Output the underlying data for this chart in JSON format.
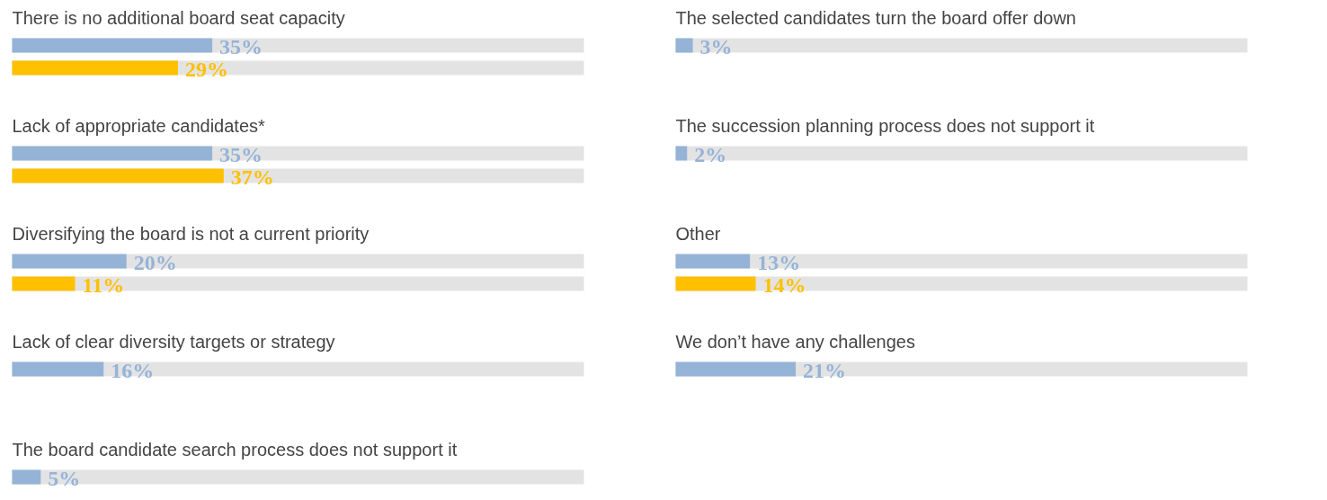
{
  "chart_data": [
    {
      "type": "bar",
      "orientation": "horizontal",
      "categories": [
        "There is no additional board seat capacity",
        "Lack of appropriate candidates*",
        "Diversifying the board is not a current priority",
        "Lack of clear diversity targets or strategy",
        "The board candidate search process does not support it"
      ],
      "series": [
        {
          "color": "#95b3d7",
          "values": [
            35,
            35,
            20,
            16,
            5
          ],
          "value_labels": [
            "35%",
            "35%",
            "20%",
            "16%",
            "5%"
          ]
        },
        {
          "color": "#ffc000",
          "values": [
            29,
            37,
            11,
            null,
            null
          ],
          "value_labels": [
            "29%",
            "37%",
            "11%",
            null,
            null
          ]
        }
      ],
      "xlim": [
        0,
        100
      ],
      "tick_labels": false,
      "grid": false
    },
    {
      "type": "bar",
      "orientation": "horizontal",
      "categories": [
        "The selected candidates turn the board offer down",
        "The succession planning process does not support it",
        "Other",
        "We don’t have any challenges"
      ],
      "series": [
        {
          "color": "#95b3d7",
          "values": [
            3,
            2,
            13,
            21
          ],
          "value_labels": [
            "3%",
            "2%",
            "13%",
            "21%"
          ]
        },
        {
          "color": "#ffc000",
          "values": [
            null,
            null,
            14,
            null
          ],
          "value_labels": [
            null,
            null,
            "14%",
            null
          ]
        }
      ],
      "xlim": [
        0,
        100
      ],
      "tick_labels": false,
      "grid": false
    }
  ]
}
